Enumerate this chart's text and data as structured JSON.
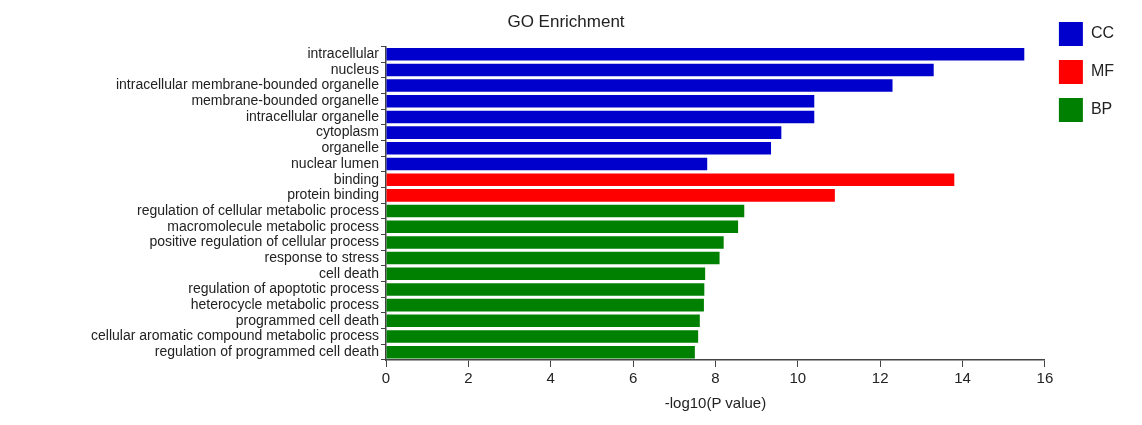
{
  "chart_data": {
    "type": "bar",
    "orientation": "horizontal",
    "title": "GO Enrichment",
    "xlabel": "-log10(P value)",
    "categories": [
      "intracellular",
      "nucleus",
      "intracellular membrane-bounded organelle",
      "membrane-bounded organelle",
      "intracellular organelle",
      "cytoplasm",
      "organelle",
      "nuclear lumen",
      "binding",
      "protein binding",
      "regulation of cellular metabolic process",
      "macromolecule metabolic process",
      "positive regulation of cellular process",
      "response to stress",
      "cell death",
      "regulation of apoptotic process",
      "heterocycle metabolic process",
      "programmed cell death",
      "cellular aromatic compound metabolic process",
      "regulation of programmed cell death"
    ],
    "series": [
      {
        "name": "CC",
        "color": "#0000cc",
        "values": [
          15.5,
          13.3,
          12.3,
          10.4,
          10.4,
          9.6,
          9.35,
          7.8,
          null,
          null,
          null,
          null,
          null,
          null,
          null,
          null,
          null,
          null,
          null,
          null
        ]
      },
      {
        "name": "MF",
        "color": "#ff0000",
        "values": [
          null,
          null,
          null,
          null,
          null,
          null,
          null,
          null,
          13.8,
          10.9,
          null,
          null,
          null,
          null,
          null,
          null,
          null,
          null,
          null,
          null
        ]
      },
      {
        "name": "BP",
        "color": "#008000",
        "values": [
          null,
          null,
          null,
          null,
          null,
          null,
          null,
          null,
          null,
          null,
          8.7,
          8.55,
          8.2,
          8.1,
          7.75,
          7.73,
          7.72,
          7.62,
          7.58,
          7.5
        ]
      }
    ],
    "xlim": [
      0,
      16
    ],
    "xticks": [
      0,
      2,
      4,
      6,
      8,
      10,
      12,
      14,
      16
    ],
    "grid": false,
    "legend": "top right"
  }
}
